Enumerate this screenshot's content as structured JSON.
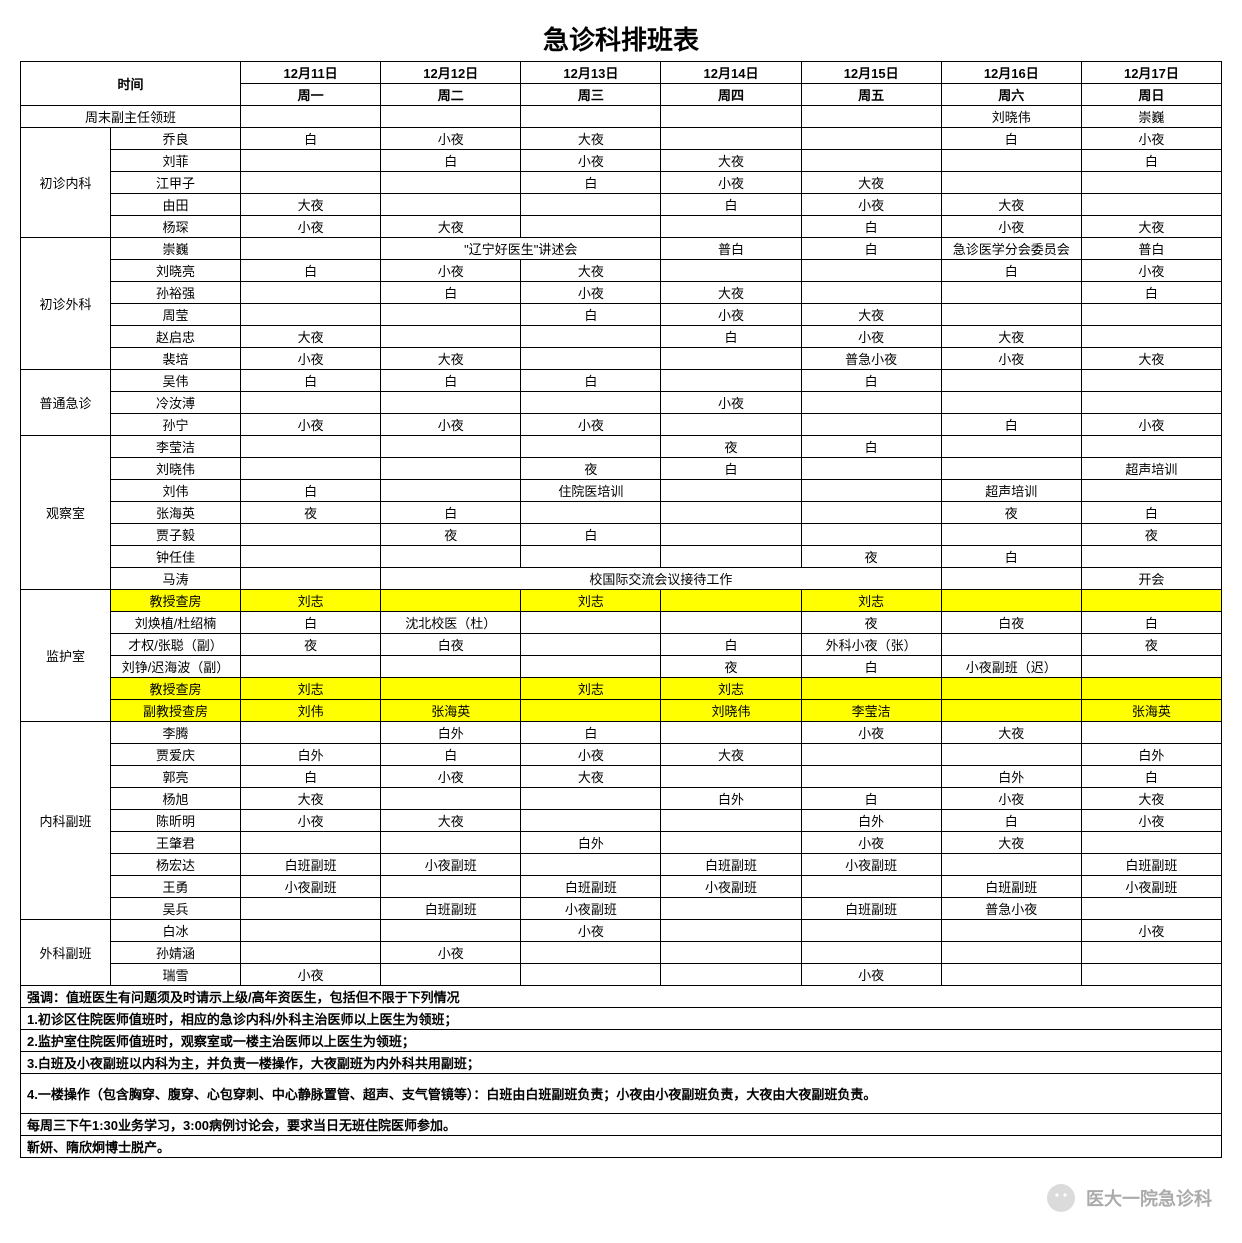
{
  "title": "急诊科排班表",
  "header": {
    "time_label": "时间",
    "dates": [
      "12月11日",
      "12月12日",
      "12月13日",
      "12月14日",
      "12月15日",
      "12月16日",
      "12月17日"
    ],
    "weekdays": [
      "周一",
      "周二",
      "周三",
      "周四",
      "周五",
      "周六",
      "周日"
    ]
  },
  "colors": {
    "highlight": "#ffff00",
    "border": "#000000",
    "bg": "#ffffff"
  },
  "sections": [
    {
      "dept": "周末副主任领班",
      "rows": [
        {
          "name": "",
          "cells": [
            "",
            "",
            "",
            "",
            "",
            "刘晓伟",
            "崇巍"
          ],
          "hl": false
        }
      ]
    },
    {
      "dept": "初诊内科",
      "rows": [
        {
          "name": "乔良",
          "cells": [
            "白",
            "小夜",
            "大夜",
            "",
            "",
            "白",
            "小夜"
          ],
          "hl": false
        },
        {
          "name": "刘菲",
          "cells": [
            "",
            "白",
            "小夜",
            "大夜",
            "",
            "",
            "白"
          ],
          "hl": false
        },
        {
          "name": "江甲子",
          "cells": [
            "",
            "",
            "白",
            "小夜",
            "大夜",
            "",
            ""
          ],
          "hl": false
        },
        {
          "name": "由田",
          "cells": [
            "大夜",
            "",
            "",
            "白",
            "小夜",
            "大夜",
            ""
          ],
          "hl": false
        },
        {
          "name": "杨琛",
          "cells": [
            "小夜",
            "大夜",
            "",
            "",
            "白",
            "小夜",
            "大夜"
          ],
          "hl": false
        }
      ]
    },
    {
      "dept": "初诊外科",
      "rows": [
        {
          "name": "崇巍",
          "cells": [
            "",
            {
              "span": 2,
              "text": "\"辽宁好医生\"讲述会"
            },
            null,
            "普白",
            "白",
            "急诊医学分会委员会",
            "普白"
          ],
          "hl": false
        },
        {
          "name": "刘晓亮",
          "cells": [
            "白",
            "小夜",
            "大夜",
            "",
            "",
            "白",
            "小夜"
          ],
          "hl": false
        },
        {
          "name": "孙裕强",
          "cells": [
            "",
            "白",
            "小夜",
            "大夜",
            "",
            "",
            "白"
          ],
          "hl": false
        },
        {
          "name": "周莹",
          "cells": [
            "",
            "",
            "白",
            "小夜",
            "大夜",
            "",
            ""
          ],
          "hl": false
        },
        {
          "name": "赵启忠",
          "cells": [
            "大夜",
            "",
            "",
            "白",
            "小夜",
            "大夜",
            ""
          ],
          "hl": false
        },
        {
          "name": "裴培",
          "cells": [
            "小夜",
            "大夜",
            "",
            "",
            "普急小夜",
            "小夜",
            "大夜"
          ],
          "hl": false
        }
      ]
    },
    {
      "dept": "普通急诊",
      "rows": [
        {
          "name": "吴伟",
          "cells": [
            "白",
            "白",
            "白",
            "",
            "白",
            "",
            ""
          ],
          "hl": false
        },
        {
          "name": "冷汝溥",
          "cells": [
            "",
            "",
            "",
            "小夜",
            "",
            "",
            ""
          ],
          "hl": false
        },
        {
          "name": "孙宁",
          "cells": [
            "小夜",
            "小夜",
            "小夜",
            "",
            "",
            "白",
            "小夜"
          ],
          "hl": false
        }
      ]
    },
    {
      "dept": "观察室",
      "rows": [
        {
          "name": "李莹洁",
          "cells": [
            "",
            "",
            "",
            "夜",
            "白",
            "",
            ""
          ],
          "hl": false
        },
        {
          "name": "刘晓伟",
          "cells": [
            "",
            "",
            "夜",
            "白",
            "",
            "",
            "超声培训"
          ],
          "hl": false
        },
        {
          "name": "刘伟",
          "cells": [
            "白",
            "",
            "住院医培训",
            "",
            "",
            "超声培训",
            ""
          ],
          "hl": false
        },
        {
          "name": "张海英",
          "cells": [
            "夜",
            "白",
            "",
            "",
            "",
            "夜",
            "白"
          ],
          "hl": false
        },
        {
          "name": "贾子毅",
          "cells": [
            "",
            "夜",
            "白",
            "",
            "",
            "",
            "夜"
          ],
          "hl": false
        },
        {
          "name": "钟任佳",
          "cells": [
            "",
            "",
            "",
            "",
            "夜",
            "白",
            ""
          ],
          "hl": false
        },
        {
          "name": "马涛",
          "cells": [
            "",
            {
              "span": 4,
              "text": "校国际交流会议接待工作"
            },
            null,
            null,
            null,
            "",
            "开会"
          ],
          "hl": false
        }
      ]
    },
    {
      "dept": "监护室",
      "rows": [
        {
          "name": "教授查房",
          "cells": [
            "刘志",
            "",
            "刘志",
            "",
            "刘志",
            "",
            ""
          ],
          "hl": true
        },
        {
          "name": "刘焕植/杜绍楠",
          "cells": [
            "白",
            "沈北校医（杜）",
            "",
            "",
            "夜",
            "白夜",
            "白"
          ],
          "hl": false
        },
        {
          "name": "才权/张聪（副）",
          "cells": [
            "夜",
            "白夜",
            "",
            "白",
            "外科小夜（张）",
            "",
            "夜"
          ],
          "hl": false
        },
        {
          "name": "刘铮/迟海波（副）",
          "cells": [
            "",
            "",
            "",
            "夜",
            "白",
            "小夜副班（迟）",
            ""
          ],
          "hl": false
        },
        {
          "name": "教授查房",
          "cells": [
            "刘志",
            "",
            "刘志",
            "刘志",
            "",
            "",
            ""
          ],
          "hl": true
        },
        {
          "name": "副教授查房",
          "cells": [
            "刘伟",
            "张海英",
            "",
            "刘晓伟",
            "李莹洁",
            "",
            "张海英"
          ],
          "hl": true
        }
      ]
    },
    {
      "dept": "内科副班",
      "rows": [
        {
          "name": "李腾",
          "cells": [
            "",
            "白外",
            "白",
            "",
            "小夜",
            "大夜",
            ""
          ],
          "hl": false
        },
        {
          "name": "贾爱庆",
          "cells": [
            "白外",
            "白",
            "小夜",
            "大夜",
            "",
            "",
            "白外"
          ],
          "hl": false
        },
        {
          "name": "郭亮",
          "cells": [
            "白",
            "小夜",
            "大夜",
            "",
            "",
            "白外",
            "白"
          ],
          "hl": false
        },
        {
          "name": "杨旭",
          "cells": [
            "大夜",
            "",
            "",
            "白外",
            "白",
            "小夜",
            "大夜"
          ],
          "hl": false
        },
        {
          "name": "陈昕明",
          "cells": [
            "小夜",
            "大夜",
            "",
            "",
            "白外",
            "白",
            "小夜"
          ],
          "hl": false
        },
        {
          "name": "王肇君",
          "cells": [
            "",
            "",
            "白外",
            "",
            "小夜",
            "大夜",
            ""
          ],
          "hl": false
        },
        {
          "name": "杨宏达",
          "cells": [
            "白班副班",
            "小夜副班",
            "",
            "白班副班",
            "小夜副班",
            "",
            "白班副班"
          ],
          "hl": false
        },
        {
          "name": "王勇",
          "cells": [
            "小夜副班",
            "",
            "白班副班",
            "小夜副班",
            "",
            "白班副班",
            "小夜副班"
          ],
          "hl": false
        },
        {
          "name": "吴兵",
          "cells": [
            "",
            "白班副班",
            "小夜副班",
            "",
            "白班副班",
            "普急小夜",
            ""
          ],
          "hl": false
        }
      ]
    },
    {
      "dept": "外科副班",
      "rows": [
        {
          "name": "白冰",
          "cells": [
            "",
            "",
            "小夜",
            "",
            "",
            "",
            "小夜"
          ],
          "hl": false
        },
        {
          "name": "孙婧涵",
          "cells": [
            "",
            "小夜",
            "",
            "",
            "",
            "",
            ""
          ],
          "hl": false
        },
        {
          "name": "瑞雪",
          "cells": [
            "小夜",
            "",
            "",
            "",
            "小夜",
            "",
            ""
          ],
          "hl": false
        }
      ]
    }
  ],
  "notes": [
    "强调：值班医生有问题须及时请示上级/高年资医生，包括但不限于下列情况",
    "1.初诊区住院医师值班时，相应的急诊内科/外科主治医师以上医生为领班；",
    "2.监护室住院医师值班时，观察室或一楼主治医师以上医生为领班；",
    "3.白班及小夜副班以内科为主，并负责一楼操作，大夜副班为内外科共用副班；",
    "4.一楼操作（包含胸穿、腹穿、心包穿刺、中心静脉置管、超声、支气管镜等）：白班由白班副班负责；小夜由小夜副班负责，大夜由大夜副班负责。",
    "每周三下午1:30业务学习，3:00病例讨论会，要求当日无班住院医师参加。",
    "靳妍、隋欣炯博士脱产。"
  ],
  "note_heights": [
    1,
    1,
    1,
    1,
    2,
    1,
    1
  ],
  "watermark": "医大一院急诊科"
}
